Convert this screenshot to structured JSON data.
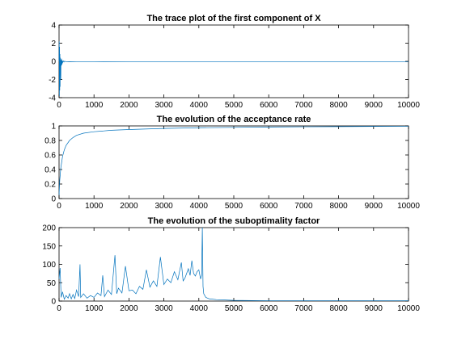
{
  "chart_data": [
    {
      "type": "line",
      "title": "The trace plot of the first component of X",
      "xlim": [
        0,
        10000
      ],
      "ylim": [
        -4,
        4
      ],
      "x_ticks": [
        0,
        1000,
        2000,
        3000,
        4000,
        5000,
        6000,
        7000,
        8000,
        9000,
        10000
      ],
      "y_ticks": [
        -4,
        -2,
        0,
        2,
        4
      ],
      "grid": false,
      "color": "#0072BD",
      "series": [
        {
          "x": [
            0,
            5,
            10,
            15,
            20,
            25,
            30,
            35,
            40,
            45,
            50,
            55,
            60,
            70,
            80,
            90,
            100,
            120,
            140,
            160,
            200,
            300,
            500,
            1000,
            2000,
            3000,
            4000,
            5000,
            6000,
            7000,
            8000,
            9000,
            10000
          ],
          "y": [
            0,
            2.2,
            -3.8,
            1.6,
            -3.2,
            0.8,
            -2.8,
            0.4,
            -1.2,
            -0.3,
            -2.0,
            0.2,
            -0.5,
            0.3,
            -0.4,
            0.1,
            -0.15,
            0.05,
            -0.08,
            0.02,
            -0.05,
            -0.03,
            -0.05,
            -0.04,
            -0.05,
            -0.04,
            -0.05,
            -0.05,
            -0.04,
            -0.05,
            -0.04,
            -0.05,
            -0.05
          ]
        }
      ]
    },
    {
      "type": "line",
      "title": "The evolution of the acceptance rate",
      "xlim": [
        0,
        10000
      ],
      "ylim": [
        0,
        1
      ],
      "x_ticks": [
        0,
        1000,
        2000,
        3000,
        4000,
        5000,
        6000,
        7000,
        8000,
        9000,
        10000
      ],
      "y_ticks": [
        0,
        0.2,
        0.4,
        0.6,
        0.8,
        1
      ],
      "grid": false,
      "color": "#0072BD",
      "series": [
        {
          "x": [
            0,
            20,
            50,
            100,
            150,
            200,
            300,
            400,
            500,
            700,
            1000,
            1500,
            2000,
            3000,
            4000,
            5000,
            6000,
            7000,
            8000,
            9000,
            10000
          ],
          "y": [
            0.05,
            0.25,
            0.42,
            0.58,
            0.67,
            0.73,
            0.8,
            0.84,
            0.87,
            0.9,
            0.92,
            0.94,
            0.95,
            0.965,
            0.975,
            0.98,
            0.985,
            0.988,
            0.99,
            0.993,
            0.995
          ]
        }
      ]
    },
    {
      "type": "line",
      "title": "The evolution of the suboptimality factor",
      "xlim": [
        0,
        10000
      ],
      "ylim": [
        0,
        200
      ],
      "x_ticks": [
        0,
        1000,
        2000,
        3000,
        4000,
        5000,
        6000,
        7000,
        8000,
        9000,
        10000
      ],
      "y_ticks": [
        0,
        50,
        100,
        150,
        200
      ],
      "grid": false,
      "color": "#0072BD",
      "series": [
        {
          "x": [
            0,
            30,
            60,
            100,
            150,
            200,
            260,
            300,
            350,
            400,
            450,
            500,
            560,
            600,
            620,
            700,
            800,
            900,
            1000,
            1100,
            1200,
            1250,
            1300,
            1400,
            1500,
            1600,
            1650,
            1700,
            1800,
            1900,
            2000,
            2100,
            2200,
            2300,
            2400,
            2500,
            2600,
            2700,
            2800,
            2900,
            3000,
            3100,
            3200,
            3300,
            3400,
            3500,
            3550,
            3600,
            3700,
            3750,
            3800,
            3850,
            3900,
            3950,
            4000,
            4050,
            4080,
            4100,
            4120,
            4140,
            4200,
            4300,
            4500,
            5000,
            6000,
            7000,
            8000,
            9000,
            10000
          ],
          "y": [
            60,
            90,
            10,
            25,
            5,
            15,
            8,
            20,
            6,
            18,
            7,
            30,
            12,
            100,
            10,
            20,
            8,
            15,
            10,
            22,
            15,
            70,
            12,
            30,
            18,
            125,
            20,
            35,
            22,
            95,
            28,
            30,
            20,
            40,
            32,
            85,
            38,
            55,
            40,
            120,
            45,
            60,
            50,
            80,
            58,
            105,
            55,
            62,
            88,
            70,
            110,
            75,
            68,
            80,
            85,
            60,
            70,
            200,
            40,
            20,
            10,
            6,
            4,
            2,
            1,
            1,
            1,
            1,
            1
          ]
        }
      ]
    }
  ]
}
